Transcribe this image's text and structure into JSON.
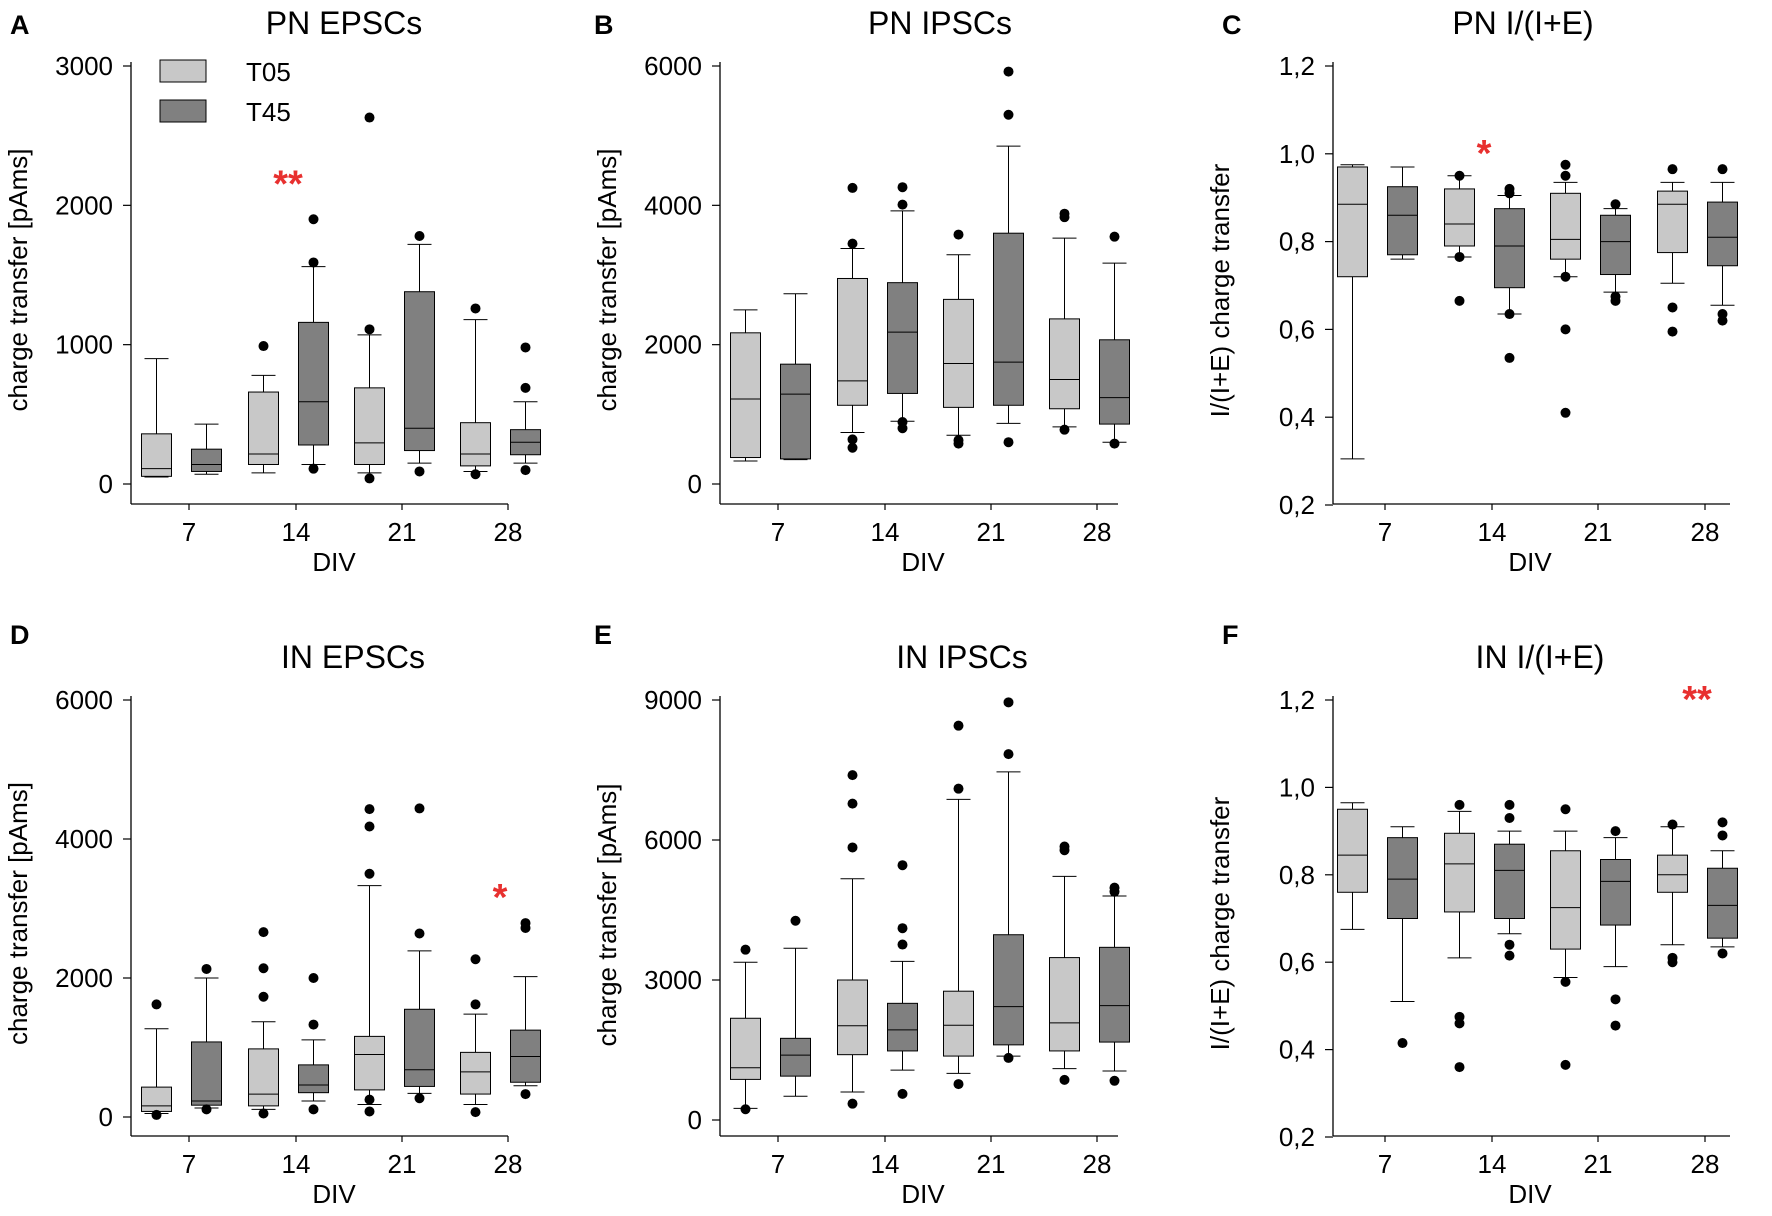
{
  "colors": {
    "t05": "#c8c8c8",
    "t45": "#808080",
    "significance": "#e8302f"
  },
  "legend": {
    "items": [
      {
        "label": "T05",
        "color": "#c8c8c8"
      },
      {
        "label": "T45",
        "color": "#808080"
      }
    ]
  },
  "chart_data": [
    {
      "id": "A",
      "panel_label": "A",
      "type": "box",
      "title": "PN EPSCs",
      "xlabel": "DIV",
      "ylabel": "charge transfer [pAms]",
      "ylim": [
        0,
        3000
      ],
      "yticks": [
        0,
        1000,
        2000,
        3000
      ],
      "ytick_labels": [
        "0",
        "1000",
        "2000",
        "3000"
      ],
      "categories": [
        "7",
        "14",
        "21",
        "28"
      ],
      "series": [
        {
          "name": "T05",
          "boxes": [
            {
              "min": 50,
              "q1": 55,
              "median": 110,
              "q3": 360,
              "max": 900,
              "outliers": []
            },
            {
              "min": 80,
              "q1": 140,
              "median": 215,
              "q3": 660,
              "max": 780,
              "outliers": [
                990
              ]
            },
            {
              "min": 80,
              "q1": 140,
              "median": 295,
              "q3": 690,
              "max": 1070,
              "outliers": [
                40,
                2630,
                1110
              ]
            },
            {
              "min": 90,
              "q1": 130,
              "median": 215,
              "q3": 440,
              "max": 1180,
              "outliers": [
                70,
                1260
              ]
            }
          ]
        },
        {
          "name": "T45",
          "boxes": [
            {
              "min": 70,
              "q1": 90,
              "median": 140,
              "q3": 250,
              "max": 430,
              "outliers": []
            },
            {
              "min": 140,
              "q1": 280,
              "median": 590,
              "q3": 1160,
              "max": 1560,
              "outliers": [
                110,
                1590,
                1900
              ]
            },
            {
              "min": 150,
              "q1": 240,
              "median": 400,
              "q3": 1380,
              "max": 1720,
              "outliers": [
                90,
                1780
              ]
            },
            {
              "min": 150,
              "q1": 210,
              "median": 300,
              "q3": 390,
              "max": 590,
              "outliers": [
                100,
                690,
                980
              ]
            }
          ]
        }
      ],
      "significance": [
        {
          "category": "14",
          "label": "**",
          "value": 2150
        }
      ]
    },
    {
      "id": "B",
      "panel_label": "B",
      "type": "box",
      "title": "PN IPSCs",
      "xlabel": "DIV",
      "ylabel": "charge transfer [pAms]",
      "ylim": [
        0,
        6000
      ],
      "yticks": [
        0,
        2000,
        4000,
        6000
      ],
      "ytick_labels": [
        "0",
        "2000",
        "4000",
        "6000"
      ],
      "categories": [
        "7",
        "14",
        "21",
        "28"
      ],
      "series": [
        {
          "name": "T05",
          "boxes": [
            {
              "min": 330,
              "q1": 380,
              "median": 1220,
              "q3": 2170,
              "max": 2500,
              "outliers": []
            },
            {
              "min": 740,
              "q1": 1130,
              "median": 1480,
              "q3": 2950,
              "max": 3380,
              "outliers": [
                520,
                640,
                3450,
                4250
              ]
            },
            {
              "min": 700,
              "q1": 1100,
              "median": 1730,
              "q3": 2650,
              "max": 3290,
              "outliers": [
                580,
                630,
                3580
              ]
            },
            {
              "min": 820,
              "q1": 1080,
              "median": 1500,
              "q3": 2370,
              "max": 3530,
              "outliers": [
                780,
                3830,
                3880
              ]
            }
          ]
        },
        {
          "name": "T45",
          "boxes": [
            {
              "min": 350,
              "q1": 360,
              "median": 1290,
              "q3": 1720,
              "max": 2730,
              "outliers": []
            },
            {
              "min": 900,
              "q1": 1300,
              "median": 2180,
              "q3": 2890,
              "max": 3920,
              "outliers": [
                800,
                890,
                4010,
                4260
              ]
            },
            {
              "min": 870,
              "q1": 1130,
              "median": 1750,
              "q3": 3600,
              "max": 4850,
              "outliers": [
                600,
                5300,
                5920
              ]
            },
            {
              "min": 600,
              "q1": 860,
              "median": 1240,
              "q3": 2070,
              "max": 3170,
              "outliers": [
                580,
                3550
              ]
            }
          ]
        }
      ],
      "significance": []
    },
    {
      "id": "C",
      "panel_label": "C",
      "type": "box",
      "title": "PN I/(I+E)",
      "xlabel": "DIV",
      "ylabel": "I/(I+E) charge transfer",
      "ylim": [
        0.2,
        1.2
      ],
      "yticks": [
        0.2,
        0.4,
        0.6,
        0.8,
        1.0,
        1.2
      ],
      "ytick_labels": [
        "0,2",
        "0,4",
        "0,6",
        "0,8",
        "1,0",
        "1,2"
      ],
      "categories": [
        "7",
        "14",
        "21",
        "28"
      ],
      "series": [
        {
          "name": "T05",
          "boxes": [
            {
              "min": 0.305,
              "q1": 0.72,
              "median": 0.885,
              "q3": 0.97,
              "max": 0.975,
              "outliers": []
            },
            {
              "min": 0.765,
              "q1": 0.79,
              "median": 0.84,
              "q3": 0.92,
              "max": 0.95,
              "outliers": [
                0.665,
                0.765,
                0.95
              ]
            },
            {
              "min": 0.72,
              "q1": 0.76,
              "median": 0.805,
              "q3": 0.91,
              "max": 0.935,
              "outliers": [
                0.41,
                0.6,
                0.72,
                0.95,
                0.975
              ]
            },
            {
              "min": 0.705,
              "q1": 0.775,
              "median": 0.885,
              "q3": 0.915,
              "max": 0.935,
              "outliers": [
                0.595,
                0.65,
                0.965
              ]
            }
          ]
        },
        {
          "name": "T45",
          "boxes": [
            {
              "min": 0.76,
              "q1": 0.77,
              "median": 0.86,
              "q3": 0.925,
              "max": 0.97,
              "outliers": []
            },
            {
              "min": 0.635,
              "q1": 0.695,
              "median": 0.79,
              "q3": 0.875,
              "max": 0.905,
              "outliers": [
                0.535,
                0.635,
                0.91,
                0.92
              ]
            },
            {
              "min": 0.685,
              "q1": 0.725,
              "median": 0.8,
              "q3": 0.86,
              "max": 0.875,
              "outliers": [
                0.665,
                0.675,
                0.885
              ]
            },
            {
              "min": 0.655,
              "q1": 0.745,
              "median": 0.81,
              "q3": 0.89,
              "max": 0.935,
              "outliers": [
                0.62,
                0.635,
                0.965
              ]
            }
          ]
        }
      ],
      "significance": [
        {
          "category": "14",
          "label": "*",
          "value": 1.0
        }
      ]
    },
    {
      "id": "D",
      "panel_label": "D",
      "type": "box",
      "title": "IN EPSCs",
      "xlabel": "DIV",
      "ylabel": "charge transfer [pAms]",
      "ylim": [
        0,
        6000
      ],
      "yticks": [
        0,
        2000,
        4000,
        6000
      ],
      "ytick_labels": [
        "0",
        "2000",
        "4000",
        "6000"
      ],
      "categories": [
        "7",
        "14",
        "21",
        "28"
      ],
      "series": [
        {
          "name": "T05",
          "boxes": [
            {
              "min": 50,
              "q1": 80,
              "median": 160,
              "q3": 430,
              "max": 1270,
              "outliers": [
                30,
                1620
              ]
            },
            {
              "min": 110,
              "q1": 160,
              "median": 330,
              "q3": 980,
              "max": 1370,
              "outliers": [
                50,
                1730,
                2140,
                2660
              ]
            },
            {
              "min": 180,
              "q1": 390,
              "median": 900,
              "q3": 1160,
              "max": 3330,
              "outliers": [
                80,
                250,
                3500,
                4180,
                4430
              ]
            },
            {
              "min": 180,
              "q1": 330,
              "median": 650,
              "q3": 930,
              "max": 1480,
              "outliers": [
                70,
                1620,
                2270
              ]
            }
          ]
        },
        {
          "name": "T45",
          "boxes": [
            {
              "min": 130,
              "q1": 170,
              "median": 230,
              "q3": 1080,
              "max": 2000,
              "outliers": [
                110,
                2130
              ]
            },
            {
              "min": 230,
              "q1": 350,
              "median": 460,
              "q3": 750,
              "max": 1110,
              "outliers": [
                110,
                1330,
                2000
              ]
            },
            {
              "min": 340,
              "q1": 440,
              "median": 680,
              "q3": 1550,
              "max": 2390,
              "outliers": [
                270,
                2640,
                4440
              ]
            },
            {
              "min": 450,
              "q1": 500,
              "median": 870,
              "q3": 1250,
              "max": 2020,
              "outliers": [
                330,
                2720,
                2790
              ]
            }
          ]
        }
      ],
      "significance": [
        {
          "category": "28",
          "label": "*",
          "value": 3150
        }
      ]
    },
    {
      "id": "E",
      "panel_label": "E",
      "type": "box",
      "title": "IN IPSCs",
      "xlabel": "DIV",
      "ylabel": "charge transfer [pAms]",
      "ylim": [
        0,
        9000
      ],
      "yticks": [
        0,
        3000,
        6000,
        9000
      ],
      "ytick_labels": [
        "0",
        "3000",
        "6000",
        "9000"
      ],
      "categories": [
        "7",
        "14",
        "21",
        "28"
      ],
      "series": [
        {
          "name": "T05",
          "boxes": [
            {
              "min": 250,
              "q1": 870,
              "median": 1120,
              "q3": 2180,
              "max": 3380,
              "outliers": [
                230,
                3650
              ]
            },
            {
              "min": 600,
              "q1": 1400,
              "median": 2020,
              "q3": 3000,
              "max": 5170,
              "outliers": [
                350,
                5840,
                6780,
                7390
              ]
            },
            {
              "min": 1000,
              "q1": 1370,
              "median": 2030,
              "q3": 2760,
              "max": 6870,
              "outliers": [
                770,
                7100,
                8450
              ]
            },
            {
              "min": 1100,
              "q1": 1480,
              "median": 2080,
              "q3": 3480,
              "max": 5220,
              "outliers": [
                860,
                5780,
                5860
              ]
            }
          ]
        },
        {
          "name": "T45",
          "boxes": [
            {
              "min": 510,
              "q1": 940,
              "median": 1390,
              "q3": 1750,
              "max": 3680,
              "outliers": [
                4270
              ]
            },
            {
              "min": 1070,
              "q1": 1480,
              "median": 1930,
              "q3": 2500,
              "max": 3400,
              "outliers": [
                560,
                3760,
                4110,
                5460
              ]
            },
            {
              "min": 1370,
              "q1": 1610,
              "median": 2430,
              "q3": 3970,
              "max": 7460,
              "outliers": [
                1330,
                7840,
                8950
              ]
            },
            {
              "min": 1050,
              "q1": 1670,
              "median": 2450,
              "q3": 3700,
              "max": 4800,
              "outliers": [
                840,
                4890,
                4980
              ]
            }
          ]
        }
      ],
      "significance": []
    },
    {
      "id": "F",
      "panel_label": "F",
      "type": "box",
      "title": "IN I/(I+E)",
      "xlabel": "DIV",
      "ylabel": "I/(I+E) charge transfer",
      "ylim": [
        0.2,
        1.2
      ],
      "yticks": [
        0.2,
        0.4,
        0.6,
        0.8,
        1.0,
        1.2
      ],
      "ytick_labels": [
        "0,2",
        "0,4",
        "0,6",
        "0,8",
        "1,0",
        "1,2"
      ],
      "categories": [
        "7",
        "14",
        "21",
        "28"
      ],
      "series": [
        {
          "name": "T05",
          "boxes": [
            {
              "min": 0.675,
              "q1": 0.76,
              "median": 0.845,
              "q3": 0.95,
              "max": 0.965,
              "outliers": []
            },
            {
              "min": 0.61,
              "q1": 0.715,
              "median": 0.825,
              "q3": 0.895,
              "max": 0.945,
              "outliers": [
                0.36,
                0.46,
                0.475,
                0.96
              ]
            },
            {
              "min": 0.565,
              "q1": 0.63,
              "median": 0.725,
              "q3": 0.855,
              "max": 0.9,
              "outliers": [
                0.365,
                0.555,
                0.95
              ]
            },
            {
              "min": 0.64,
              "q1": 0.76,
              "median": 0.8,
              "q3": 0.845,
              "max": 0.91,
              "outliers": [
                0.6,
                0.61,
                0.915
              ]
            }
          ]
        },
        {
          "name": "T45",
          "boxes": [
            {
              "min": 0.51,
              "q1": 0.7,
              "median": 0.79,
              "q3": 0.885,
              "max": 0.91,
              "outliers": [
                0.415
              ]
            },
            {
              "min": 0.665,
              "q1": 0.7,
              "median": 0.81,
              "q3": 0.87,
              "max": 0.9,
              "outliers": [
                0.615,
                0.64,
                0.93,
                0.96
              ]
            },
            {
              "min": 0.59,
              "q1": 0.685,
              "median": 0.785,
              "q3": 0.835,
              "max": 0.885,
              "outliers": [
                0.455,
                0.515,
                0.9
              ]
            },
            {
              "min": 0.635,
              "q1": 0.655,
              "median": 0.73,
              "q3": 0.815,
              "max": 0.855,
              "outliers": [
                0.62,
                0.89,
                0.92
              ]
            }
          ]
        }
      ],
      "significance": [
        {
          "category": "28",
          "label": "**",
          "value": 1.2
        }
      ]
    }
  ]
}
